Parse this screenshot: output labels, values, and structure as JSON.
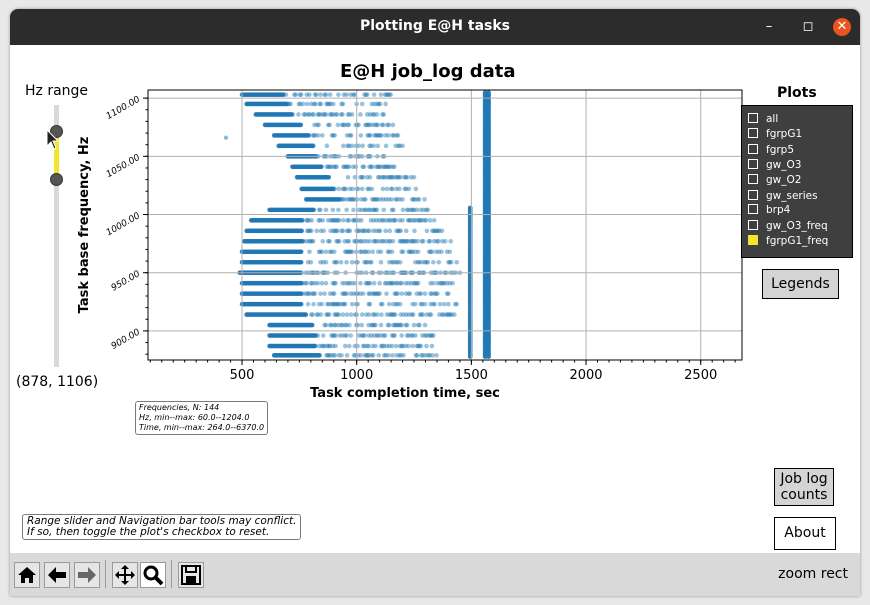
{
  "window": {
    "title": "Plotting E@H tasks"
  },
  "slider": {
    "label": "Hz range",
    "readout": "(878, 1106)"
  },
  "chart_data": {
    "type": "scatter",
    "title": "E@H job_log data",
    "xlabel": "Task completion time, sec",
    "ylabel": "Task base frequency, Hz",
    "xlim": [
      90,
      2680
    ],
    "ylim": [
      875,
      1107
    ],
    "x_ticks": [
      "500",
      "1000",
      "1500",
      "2000",
      "2500"
    ],
    "y_ticks": [
      "900.00",
      "950.00",
      "1000.00",
      "1050.00",
      "1100.00"
    ],
    "grid": true,
    "color": "#1f77b4",
    "points": [
      [
        430,
        1066
      ]
    ],
    "dense_rows": [
      {
        "y": 1103,
        "x0": 500,
        "x1": 1150
      },
      {
        "y": 1095,
        "x0": 520,
        "x1": 1160
      },
      {
        "y": 1086,
        "x0": 560,
        "x1": 1120
      },
      {
        "y": 1077,
        "x0": 600,
        "x1": 1170
      },
      {
        "y": 1068,
        "x0": 640,
        "x1": 1180
      },
      {
        "y": 1059,
        "x0": 660,
        "x1": 1200
      },
      {
        "y": 1050,
        "x0": 700,
        "x1": 1140
      },
      {
        "y": 1041,
        "x0": 720,
        "x1": 1180
      },
      {
        "y": 1032,
        "x0": 740,
        "x1": 1250
      },
      {
        "y": 1022,
        "x0": 760,
        "x1": 1260
      },
      {
        "y": 1013,
        "x0": 780,
        "x1": 1300
      },
      {
        "y": 1004,
        "x0": 620,
        "x1": 1320
      },
      {
        "y": 995,
        "x0": 540,
        "x1": 1350
      },
      {
        "y": 986,
        "x0": 520,
        "x1": 1380
      },
      {
        "y": 977,
        "x0": 510,
        "x1": 1420
      },
      {
        "y": 968,
        "x0": 500,
        "x1": 1430
      },
      {
        "y": 959,
        "x0": 500,
        "x1": 1440
      },
      {
        "y": 950,
        "x0": 490,
        "x1": 1450
      },
      {
        "y": 941,
        "x0": 500,
        "x1": 1440
      },
      {
        "y": 932,
        "x0": 500,
        "x1": 1430
      },
      {
        "y": 923,
        "x0": 500,
        "x1": 1440
      },
      {
        "y": 914,
        "x0": 520,
        "x1": 1450
      },
      {
        "y": 905,
        "x0": 620,
        "x1": 1300
      },
      {
        "y": 896,
        "x0": 620,
        "x1": 1340
      },
      {
        "y": 887,
        "x0": 620,
        "x1": 1340
      },
      {
        "y": 879,
        "x0": 640,
        "x1": 1350
      }
    ],
    "solid_columns": [
      {
        "x": 1560,
        "y0": 878,
        "y1": 1106
      },
      {
        "x": 1575,
        "y0": 878,
        "y1": 1106
      },
      {
        "x": 1495,
        "y0": 878,
        "y1": 1006
      }
    ]
  },
  "stats": {
    "line1": "Frequencies, N: 144",
    "line2": "Hz, min--max: 60.0--1204.0",
    "line3": "Time, min--max: 264.0--6370.0"
  },
  "plots": {
    "title": "Plots",
    "items": [
      {
        "label": "all",
        "checked": false
      },
      {
        "label": "fgrpG1",
        "checked": false
      },
      {
        "label": "fgrp5",
        "checked": false
      },
      {
        "label": "gw_O3",
        "checked": false
      },
      {
        "label": "gw_O2",
        "checked": false
      },
      {
        "label": "gw_series",
        "checked": false
      },
      {
        "label": "brp4",
        "checked": false
      },
      {
        "label": "gw_O3_freq",
        "checked": false
      },
      {
        "label": "fgrpG1_freq",
        "checked": true
      }
    ]
  },
  "buttons": {
    "legends": "Legends",
    "job_log_line1": "Job log",
    "job_log_line2": "counts",
    "about": "About"
  },
  "note": {
    "line1": "Range slider and Navigation bar tools may conflict.",
    "line2": "If so, then toggle the plot's checkbox to reset."
  },
  "toolbar": {
    "icons": [
      "home-icon",
      "back-icon",
      "forward-icon",
      "pan-icon",
      "zoom-icon",
      "save-icon"
    ],
    "mode": "zoom rect"
  }
}
